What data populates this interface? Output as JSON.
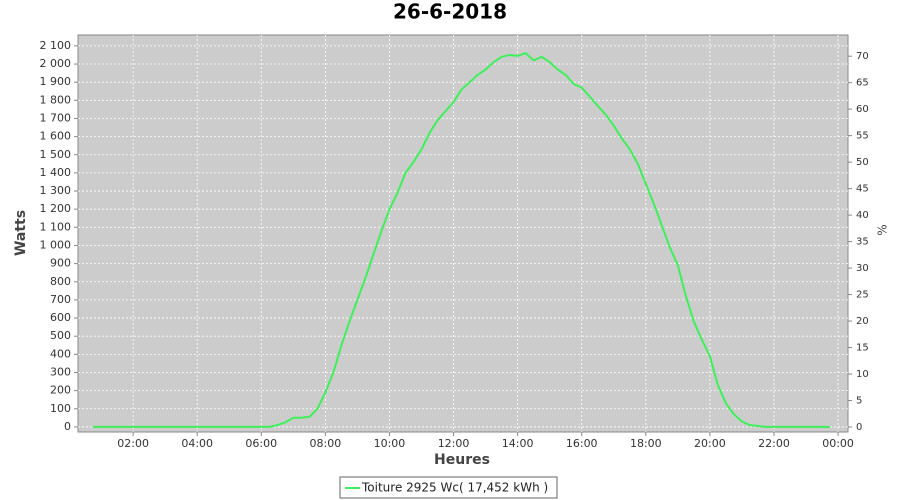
{
  "chart_data": {
    "type": "line",
    "title": "26-6-2018",
    "xlabel": "Heures",
    "ylabel": "Watts",
    "y2label": "%",
    "x": [
      0.75,
      1,
      1.25,
      1.5,
      1.75,
      2,
      2.25,
      2.5,
      2.75,
      3,
      3.25,
      3.5,
      3.75,
      4,
      4.25,
      4.5,
      4.75,
      5,
      5.25,
      5.5,
      5.75,
      6,
      6.25,
      6.5,
      6.75,
      7,
      7.25,
      7.5,
      7.75,
      8,
      8.25,
      8.5,
      8.75,
      9,
      9.25,
      9.5,
      9.75,
      10,
      10.25,
      10.5,
      10.75,
      11,
      11.25,
      11.5,
      11.75,
      12,
      12.25,
      12.5,
      12.75,
      13,
      13.25,
      13.5,
      13.75,
      14,
      14.25,
      14.5,
      14.75,
      15,
      15.25,
      15.5,
      15.75,
      16,
      16.25,
      16.5,
      16.75,
      17,
      17.25,
      17.5,
      17.75,
      18,
      18.25,
      18.5,
      18.75,
      19,
      19.25,
      19.5,
      19.75,
      20,
      20.25,
      20.5,
      20.75,
      21,
      21.25,
      21.5,
      21.75,
      22,
      22.25,
      22.5,
      22.75,
      23,
      23.25,
      23.5,
      23.75
    ],
    "series": [
      {
        "name": "Toiture 2925 Wc( 17,452 kWh )",
        "color": "#3ef05a",
        "values": [
          0,
          0,
          0,
          0,
          0,
          0,
          0,
          0,
          0,
          0,
          0,
          0,
          0,
          0,
          0,
          0,
          0,
          0,
          0,
          0,
          0,
          0,
          0,
          10,
          25,
          50,
          50,
          55,
          100,
          190,
          300,
          450,
          580,
          700,
          820,
          950,
          1080,
          1200,
          1290,
          1400,
          1460,
          1530,
          1620,
          1690,
          1740,
          1790,
          1860,
          1900,
          1940,
          1970,
          2010,
          2040,
          2050,
          2045,
          2060,
          2020,
          2040,
          2010,
          1970,
          1940,
          1890,
          1870,
          1820,
          1770,
          1720,
          1660,
          1590,
          1530,
          1450,
          1340,
          1230,
          1110,
          990,
          890,
          720,
          580,
          480,
          390,
          230,
          130,
          70,
          30,
          10,
          5,
          0,
          0,
          0,
          0,
          0,
          0,
          0,
          0,
          0
        ]
      }
    ],
    "xlim": [
      0.28,
      24.31
    ],
    "xticks": [
      {
        "value": 2,
        "label": "02:00"
      },
      {
        "value": 4,
        "label": "04:00"
      },
      {
        "value": 6,
        "label": "06:00"
      },
      {
        "value": 8,
        "label": "08:00"
      },
      {
        "value": 10,
        "label": "10:00"
      },
      {
        "value": 12,
        "label": "12:00"
      },
      {
        "value": 14,
        "label": "14:00"
      },
      {
        "value": 16,
        "label": "16:00"
      },
      {
        "value": 18,
        "label": "18:00"
      },
      {
        "value": 20,
        "label": "20:00"
      },
      {
        "value": 22,
        "label": "22:00"
      },
      {
        "value": 24,
        "label": "00:00"
      }
    ],
    "ylim": [
      -28,
      2160
    ],
    "yticks": [
      0,
      100,
      200,
      300,
      400,
      500,
      600,
      700,
      800,
      900,
      {
        "value": 1000,
        "label": "1 000"
      },
      {
        "value": 1100,
        "label": "1 100"
      },
      {
        "value": 1200,
        "label": "1 200"
      },
      {
        "value": 1300,
        "label": "1 300"
      },
      {
        "value": 1400,
        "label": "1 400"
      },
      {
        "value": 1500,
        "label": "1 500"
      },
      {
        "value": 1600,
        "label": "1 600"
      },
      {
        "value": 1700,
        "label": "1 700"
      },
      {
        "value": 1800,
        "label": "1 800"
      },
      {
        "value": 1900,
        "label": "1 900"
      },
      {
        "value": 2000,
        "label": "2 000"
      },
      {
        "value": 2100,
        "label": "2 100"
      }
    ],
    "y2lim": [
      -0.94,
      74
    ],
    "y2ticks": [
      0,
      5,
      10,
      15,
      20,
      25,
      30,
      35,
      40,
      45,
      50,
      55,
      60,
      65,
      70
    ],
    "grid": true
  }
}
